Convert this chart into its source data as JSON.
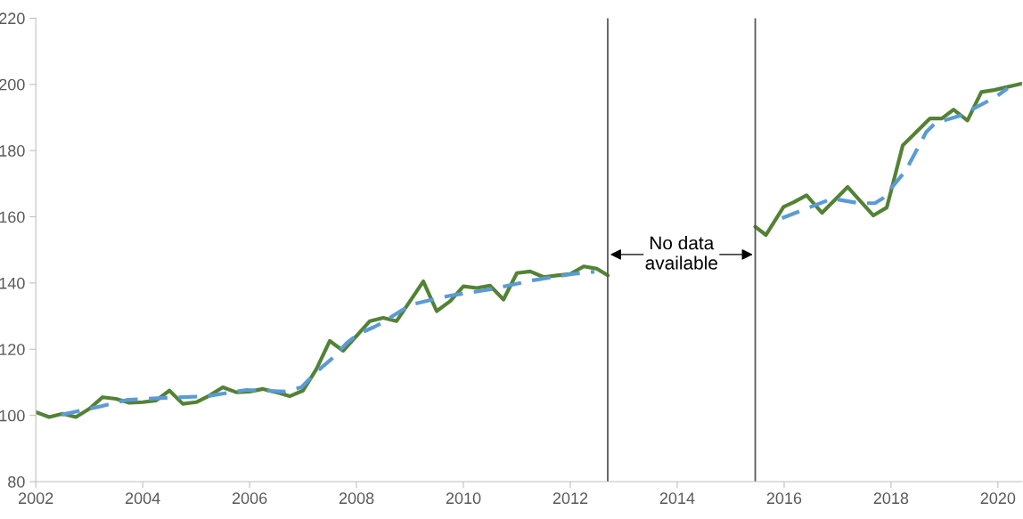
{
  "chart_data": {
    "type": "line",
    "series": [
      {
        "color": "#548235",
        "line_style": "solid",
        "x": [
          2002.0,
          2002.25,
          2002.5,
          2002.75,
          2003.0,
          2003.25,
          2003.5,
          2003.75,
          2004.0,
          2004.25,
          2004.5,
          2004.75,
          2005.0,
          2005.25,
          2005.5,
          2005.75,
          2006.0,
          2006.25,
          2006.5,
          2006.75,
          2007.0,
          2007.25,
          2007.5,
          2007.75,
          2008.0,
          2008.25,
          2008.5,
          2008.75,
          2009.0,
          2009.25,
          2009.5,
          2009.75,
          2010.0,
          2010.25,
          2010.5,
          2010.75,
          2011.0,
          2011.25,
          2011.5,
          2011.75,
          2012.0,
          2012.25,
          2012.5,
          2012.7,
          2015.46,
          2015.66,
          2015.99,
          2016.18,
          2016.42,
          2016.71,
          2017.19,
          2017.67,
          2017.92,
          2018.05,
          2018.22,
          2018.44,
          2018.73,
          2018.95,
          2019.17,
          2019.43,
          2019.69,
          2019.93,
          2020.44
        ],
        "values": [
          101,
          99.5,
          100.5,
          99.5,
          102,
          105.5,
          105,
          103.8,
          104,
          104.5,
          107.5,
          103.5,
          104,
          106,
          108.5,
          107,
          107.2,
          108,
          107,
          105.8,
          107.5,
          114,
          122.5,
          119.5,
          124,
          128.5,
          129.5,
          128.5,
          134.5,
          140.5,
          131.5,
          134.5,
          139,
          138.5,
          139.2,
          135,
          143,
          143.5,
          141.8,
          142.3,
          142.7,
          145,
          144.3,
          142.3,
          157,
          154.5,
          163,
          164.4,
          166.5,
          161.2,
          169,
          160.4,
          162.8,
          170.9,
          181.6,
          185.1,
          189.7,
          189.7,
          192.4,
          189.1,
          197.7,
          198.3,
          200.2
        ]
      },
      {
        "color": "#5b9bd5",
        "line_style": "dashed",
        "x": [
          2002.48,
          2002.94,
          2003.23,
          2003.71,
          2004.43,
          2005.2,
          2005.94,
          2006.67,
          2006.97,
          2007.26,
          2007.53,
          2007.82,
          2008.03,
          2008.34,
          2008.46,
          2009.02,
          2009.76,
          2010.51,
          2011.3,
          2011.98,
          2012.45,
          2015.96,
          2016.9,
          2017.41,
          2017.7,
          2017.84,
          2018.27,
          2018.66,
          2018.83,
          2019.29,
          2019.95,
          2020.18
        ],
        "values": [
          100.2,
          101.8,
          102.8,
          104.7,
          105.3,
          105.8,
          107.7,
          107.2,
          108.5,
          113.3,
          117,
          121.9,
          124.6,
          126.8,
          127.8,
          133.5,
          136.2,
          138.1,
          140.8,
          142.6,
          143.4,
          159.6,
          165.5,
          164.1,
          164.1,
          165.5,
          173.8,
          185.6,
          188.3,
          190.5,
          196.1,
          198.8
        ]
      }
    ],
    "xlim": [
      2002,
      2020.45
    ],
    "xticks": [
      2002,
      2004,
      2006,
      2008,
      2010,
      2012,
      2014,
      2016,
      2018,
      2020
    ],
    "ylim": [
      80,
      220
    ],
    "yticks": [
      80,
      100,
      120,
      140,
      160,
      180,
      200,
      220
    ],
    "ref_lines": [
      {
        "axis": "x",
        "value": 2012.7,
        "color": "#595959"
      },
      {
        "axis": "x",
        "value": 2015.46,
        "color": "#595959"
      }
    ],
    "annotations": [
      "No data\navailable"
    ],
    "grid": false,
    "legend": false
  }
}
